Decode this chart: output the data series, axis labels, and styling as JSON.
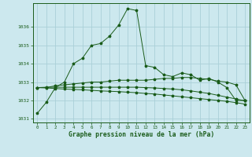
{
  "title": "Graphe pression niveau de la mer (hPa)",
  "background_color": "#cce8ee",
  "grid_color": "#aad0d8",
  "line_color": "#1a5c1a",
  "xlim": [
    -0.5,
    23.5
  ],
  "ylim": [
    1030.8,
    1037.3
  ],
  "yticks": [
    1031,
    1032,
    1033,
    1034,
    1035,
    1036
  ],
  "xticks": [
    0,
    1,
    2,
    3,
    4,
    5,
    6,
    7,
    8,
    9,
    10,
    11,
    12,
    13,
    14,
    15,
    16,
    17,
    18,
    19,
    20,
    21,
    22,
    23
  ],
  "series": [
    {
      "x": [
        0,
        1,
        2,
        3,
        4,
        5,
        6,
        7,
        8,
        9,
        10,
        11,
        12,
        13,
        14,
        15,
        16,
        17,
        18,
        19,
        20,
        21,
        22,
        23
      ],
      "y": [
        1031.3,
        1031.9,
        1032.7,
        1033.0,
        1034.0,
        1034.3,
        1035.0,
        1035.1,
        1035.5,
        1036.1,
        1037.0,
        1036.9,
        1033.9,
        1033.8,
        1033.4,
        1033.3,
        1033.5,
        1033.4,
        1033.1,
        1033.2,
        1033.0,
        1032.7,
        1032.0,
        1032.0
      ]
    },
    {
      "x": [
        0,
        1,
        2,
        3,
        4,
        5,
        6,
        7,
        8,
        9,
        10,
        11,
        12,
        13,
        14,
        15,
        16,
        17,
        18,
        19,
        20,
        21,
        22,
        23
      ],
      "y": [
        1032.7,
        1032.7,
        1032.8,
        1032.85,
        1032.9,
        1032.95,
        1033.0,
        1033.0,
        1033.05,
        1033.1,
        1033.1,
        1033.1,
        1033.1,
        1033.15,
        1033.2,
        1033.2,
        1033.25,
        1033.25,
        1033.2,
        1033.15,
        1033.05,
        1033.0,
        1032.85,
        1032.0
      ]
    },
    {
      "x": [
        0,
        1,
        2,
        3,
        4,
        5,
        6,
        7,
        8,
        9,
        10,
        11,
        12,
        13,
        14,
        15,
        16,
        17,
        18,
        19,
        20,
        21,
        22,
        23
      ],
      "y": [
        1032.7,
        1032.72,
        1032.72,
        1032.72,
        1032.72,
        1032.72,
        1032.72,
        1032.72,
        1032.72,
        1032.72,
        1032.72,
        1032.72,
        1032.7,
        1032.68,
        1032.65,
        1032.62,
        1032.58,
        1032.52,
        1032.45,
        1032.38,
        1032.28,
        1032.18,
        1032.08,
        1031.98
      ]
    },
    {
      "x": [
        0,
        1,
        2,
        3,
        4,
        5,
        6,
        7,
        8,
        9,
        10,
        11,
        12,
        13,
        14,
        15,
        16,
        17,
        18,
        19,
        20,
        21,
        22,
        23
      ],
      "y": [
        1032.7,
        1032.68,
        1032.65,
        1032.62,
        1032.6,
        1032.58,
        1032.55,
        1032.52,
        1032.5,
        1032.48,
        1032.45,
        1032.42,
        1032.38,
        1032.35,
        1032.3,
        1032.25,
        1032.2,
        1032.15,
        1032.1,
        1032.05,
        1032.0,
        1031.95,
        1031.88,
        1031.8
      ]
    }
  ]
}
